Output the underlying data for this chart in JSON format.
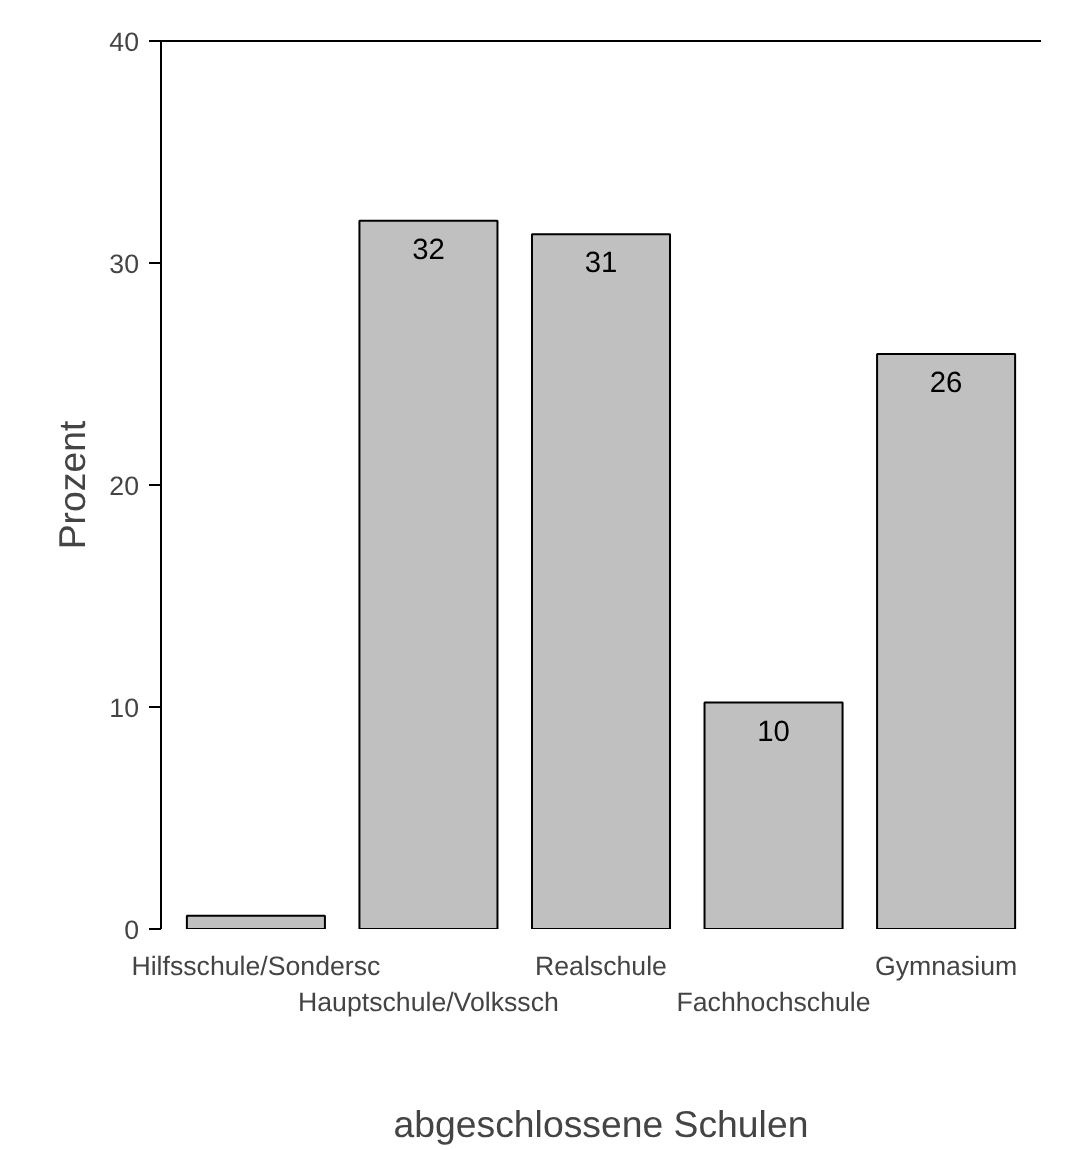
{
  "chart_data": {
    "type": "bar",
    "xlabel": "abgeschlossene Schulen",
    "ylabel": "Prozent",
    "categories": [
      "Hilfsschule/Sondersc",
      "Hauptschule/Volkssch",
      "Realschule",
      "Fachhochschule",
      "Gymnasium"
    ],
    "values": [
      0.6,
      31.9,
      31.3,
      10.2,
      25.9
    ],
    "value_labels": [
      null,
      "32",
      "31",
      "10",
      "26"
    ],
    "color": "#c0c0c0",
    "ylim": [
      0,
      40
    ],
    "yticks": [
      0,
      10,
      20,
      30,
      40
    ]
  }
}
